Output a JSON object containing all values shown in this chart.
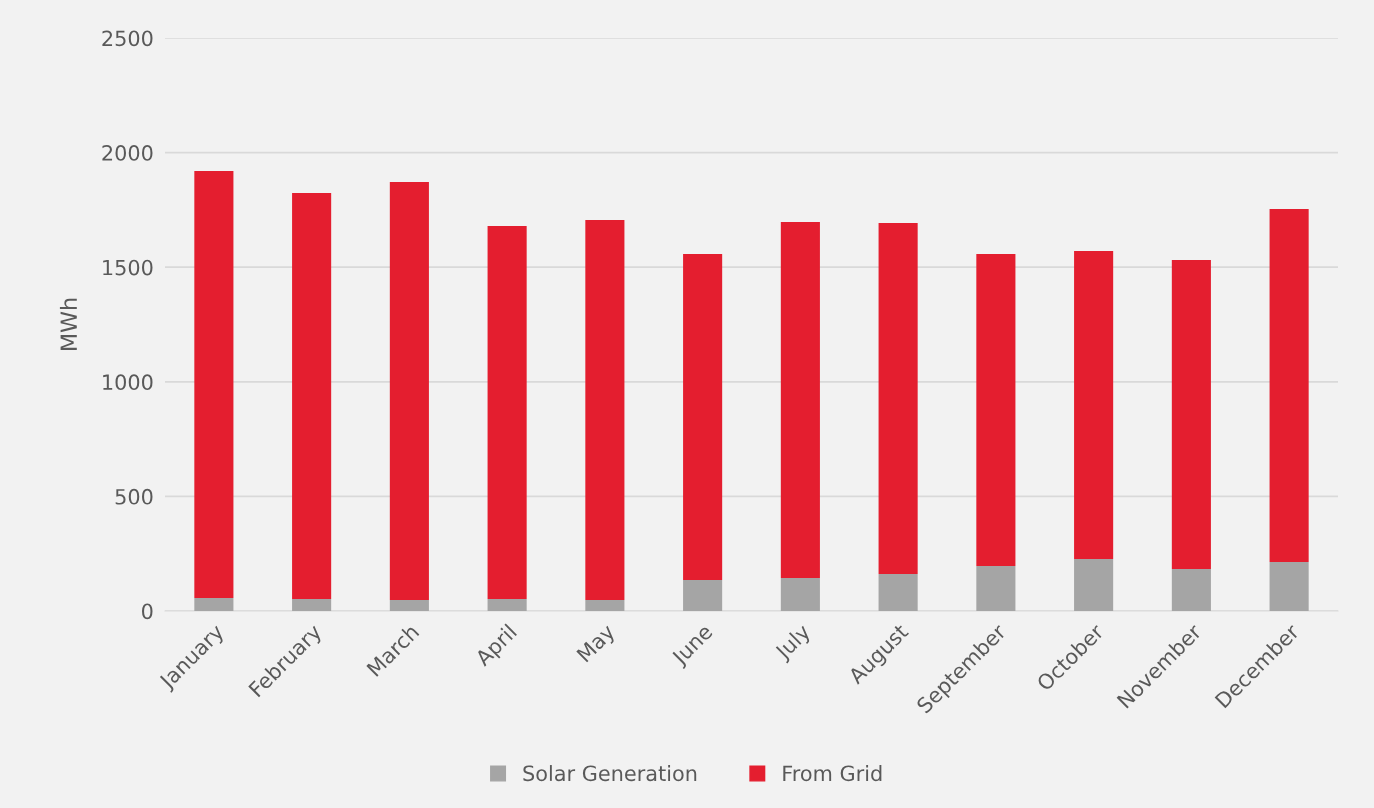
{
  "chart_data": {
    "type": "bar",
    "stacked": true,
    "ylabel": "MWh",
    "categories": [
      "January",
      "February",
      "March",
      "April",
      "May",
      "June",
      "July",
      "August",
      "September",
      "October",
      "November",
      "December"
    ],
    "series": [
      {
        "name": "Solar Generation",
        "color": "#a5a5a5",
        "values": [
          57,
          52,
          48,
          52,
          48,
          135,
          144,
          161,
          196,
          227,
          183,
          214
        ]
      },
      {
        "name": "From Grid",
        "color": "#e41e2f",
        "values": [
          1863,
          1772,
          1824,
          1628,
          1658,
          1423,
          1553,
          1532,
          1362,
          1344,
          1348,
          1540
        ]
      }
    ],
    "ylim": [
      0,
      2500
    ],
    "yticks": [
      0,
      500,
      1000,
      1500,
      2000,
      2500
    ],
    "grid": "y",
    "legend": "bottom"
  }
}
